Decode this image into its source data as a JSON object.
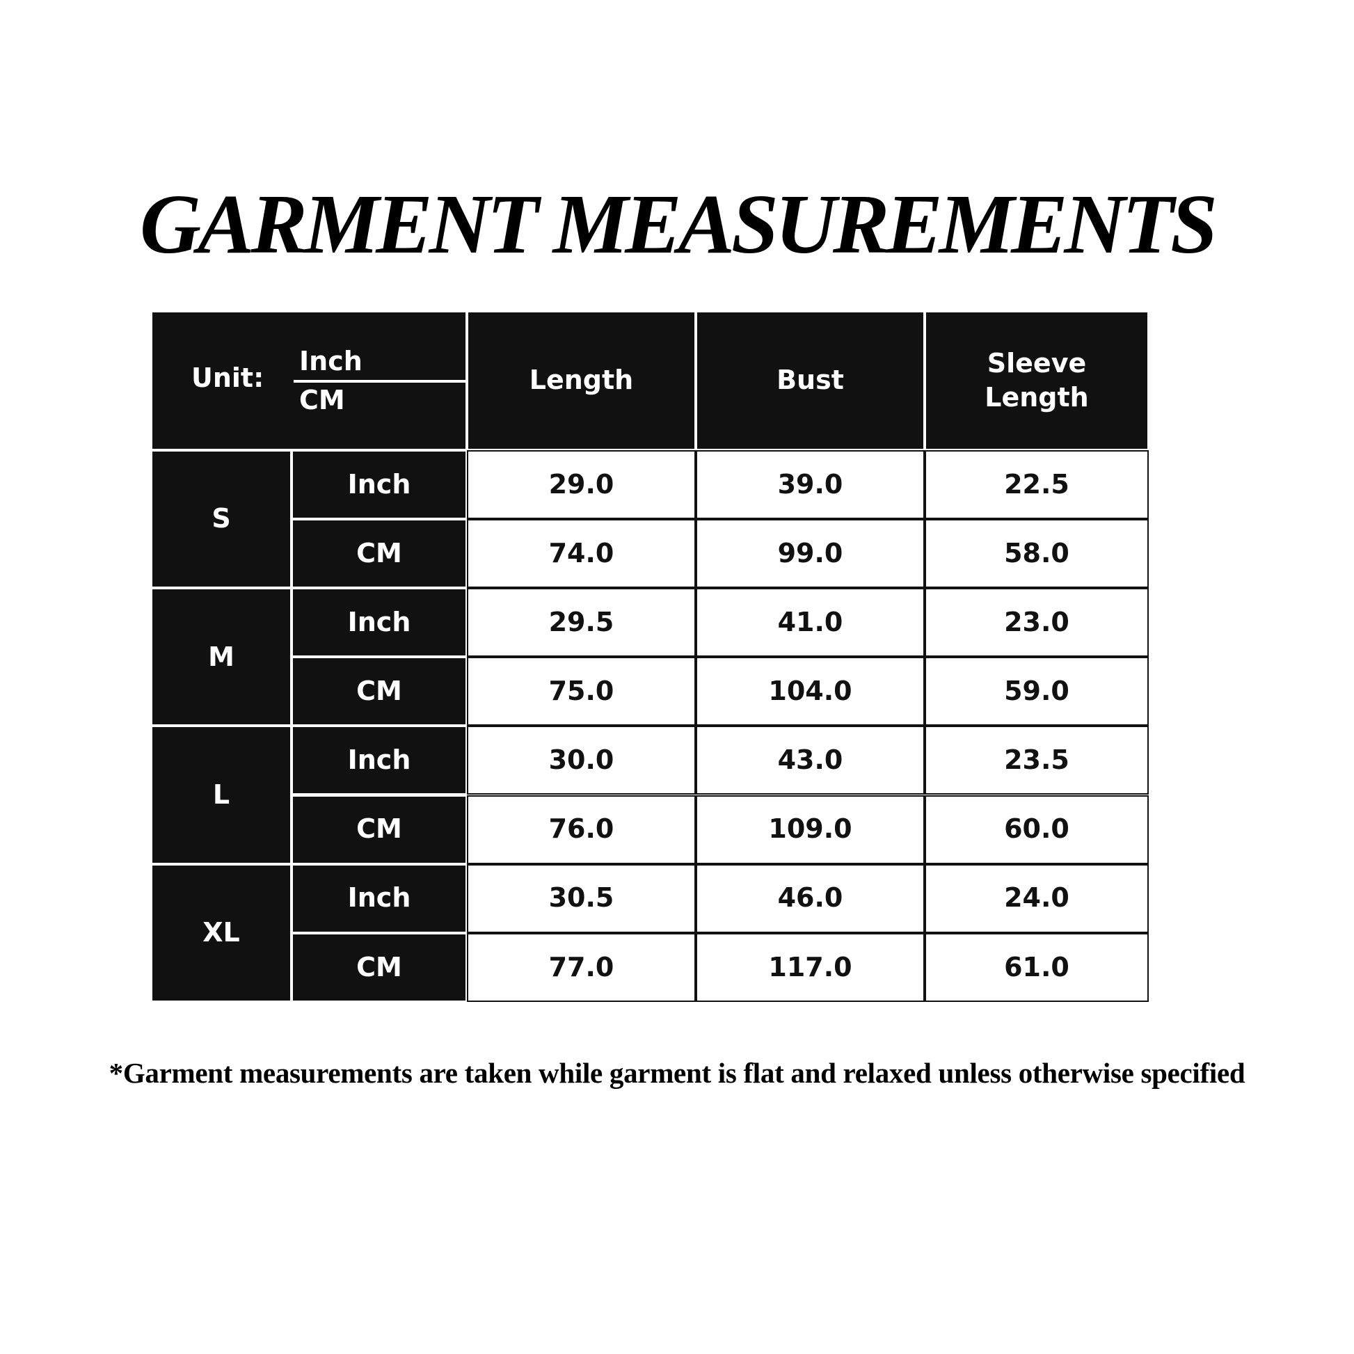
{
  "title": "GARMENT MEASUREMENTS",
  "table": {
    "unit_label": "Unit:",
    "unit_inch": "Inch",
    "unit_cm": "CM",
    "columns": [
      "Length",
      "Bust",
      "Sleeve Length"
    ],
    "sizes": [
      {
        "size": "S",
        "rows": [
          {
            "unit": "Inch",
            "values": [
              "29.0",
              "39.0",
              "22.5"
            ]
          },
          {
            "unit": "CM",
            "values": [
              "74.0",
              "99.0",
              "58.0"
            ]
          }
        ]
      },
      {
        "size": "M",
        "rows": [
          {
            "unit": "Inch",
            "values": [
              "29.5",
              "41.0",
              "23.0"
            ]
          },
          {
            "unit": "CM",
            "values": [
              "75.0",
              "104.0",
              "59.0"
            ]
          }
        ]
      },
      {
        "size": "L",
        "rows": [
          {
            "unit": "Inch",
            "values": [
              "30.0",
              "43.0",
              "23.5"
            ]
          },
          {
            "unit": "CM",
            "values": [
              "76.0",
              "109.0",
              "60.0"
            ]
          }
        ]
      },
      {
        "size": "XL",
        "rows": [
          {
            "unit": "Inch",
            "values": [
              "30.5",
              "46.0",
              "24.0"
            ]
          },
          {
            "unit": "CM",
            "values": [
              "77.0",
              "117.0",
              "61.0"
            ]
          }
        ]
      }
    ]
  },
  "footnote": "*Garment measurements are taken while garment is flat and relaxed unless otherwise specified",
  "colors": {
    "header_bg": "#111111",
    "cell_bg": "#ffffff",
    "text_dark": "#111111"
  }
}
